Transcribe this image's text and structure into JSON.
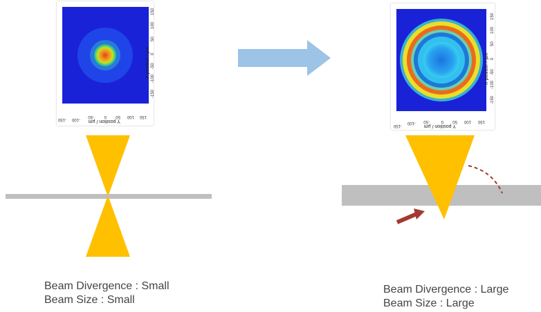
{
  "left": {
    "x_axis_label": "X position / µm",
    "y_axis_label": "Y position / µm",
    "ticks": [
      "150",
      "100",
      "50",
      "0",
      "-50",
      "-100",
      "-150"
    ],
    "caption_line1": "Beam Divergence : Small",
    "caption_line2": "Beam Size : Small"
  },
  "right": {
    "x_axis_label": "X position / µm",
    "y_axis_label": "Y position / µm",
    "ticks": [
      "150",
      "100",
      "50",
      "0",
      "-50",
      "-100",
      "-150"
    ],
    "caption_line1": "Beam Divergence : Large",
    "caption_line2": "Beam Size : Large"
  },
  "colors": {
    "beam": "#FFC000",
    "surface": "#BFBFBF",
    "arrow": "#9DC3E6",
    "marker": "#A33A32",
    "heat_bg": "#1A2FD6"
  }
}
